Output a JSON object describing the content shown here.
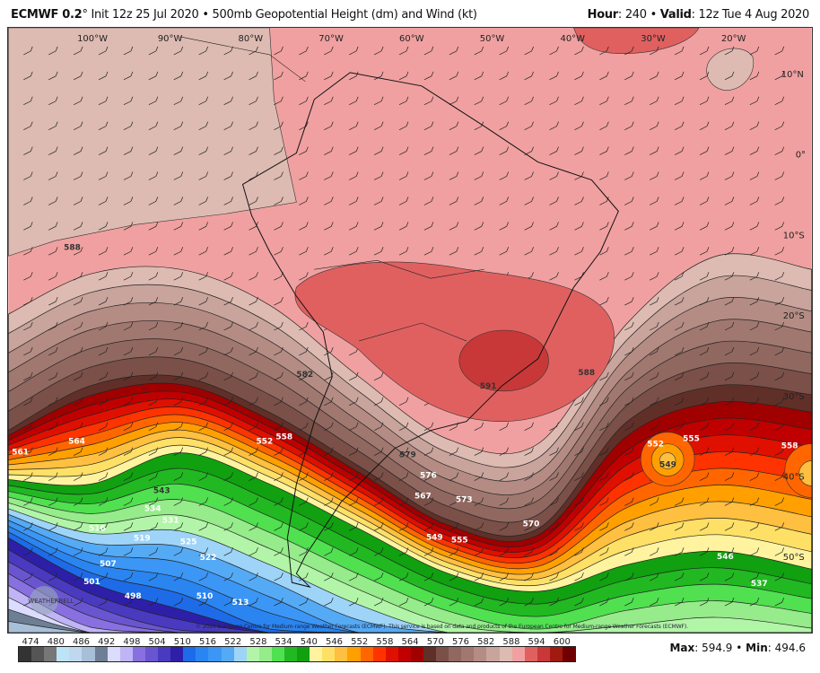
{
  "header": {
    "model": "ECMWF 0.2",
    "degree": "°",
    "init": "Init 12z 25 Jul 2020",
    "sep": "•",
    "field": "500mb Geopotential Height (dm) and Wind (kt)",
    "hour_label": "Hour",
    "hour": ": 240",
    "valid_label": "Valid",
    "valid": ": 12z Tue 4 Aug 2020"
  },
  "map": {
    "lon_labels": [
      "100°W",
      "90°W",
      "80°W",
      "70°W",
      "60°W",
      "50°W",
      "40°W",
      "30°W",
      "20°W"
    ],
    "lat_labels": [
      "10°N",
      "0°",
      "10°S",
      "20°S",
      "30°S",
      "40°S",
      "50°S"
    ],
    "contour_labels": [
      "588",
      "591",
      "582",
      "579",
      "576",
      "573",
      "570",
      "567",
      "564",
      "561",
      "558",
      "555",
      "552",
      "549",
      "546",
      "543",
      "537",
      "534",
      "531",
      "525",
      "522",
      "519",
      "516",
      "513",
      "510",
      "507",
      "501",
      "498",
      "588",
      "558",
      "552",
      "555",
      "549"
    ],
    "copyright": "© 2020 European Centre for Medium-range Weather Forecasts (ECMWF). This service is based on data and products of the European Centre for Medium-range Weather Forecasts (ECMWF).",
    "logo_text": "WEATHERBELL"
  },
  "colorbar": {
    "labels": [
      "474",
      "480",
      "486",
      "492",
      "498",
      "504",
      "510",
      "516",
      "522",
      "528",
      "534",
      "540",
      "546",
      "552",
      "558",
      "564",
      "570",
      "576",
      "582",
      "588",
      "594",
      "600"
    ],
    "colors": [
      "#333333",
      "#555555",
      "#777777",
      "#bde3f7",
      "#c0d8ee",
      "#a8bfd8",
      "#6e7f95",
      "#dcdcff",
      "#bfb4f5",
      "#8870e0",
      "#6a55d0",
      "#4a3ac0",
      "#2e1fa8",
      "#1e6be8",
      "#2a85f0",
      "#3c96f5",
      "#55aaf5",
      "#9ed4f8",
      "#b2f5a8",
      "#96eb8a",
      "#50e050",
      "#22b822",
      "#10a010",
      "#fff3a0",
      "#ffe066",
      "#ffbf40",
      "#ffa000",
      "#ff6600",
      "#ff3300",
      "#e01000",
      "#c00000",
      "#a00000",
      "#603028",
      "#7a5048",
      "#906860",
      "#a07870",
      "#b48c84",
      "#c8a49c",
      "#ddbbb2",
      "#f0a0a0",
      "#e06060",
      "#c83838",
      "#a01a10",
      "#700000"
    ]
  },
  "stats": {
    "max_label": "Max",
    "max": ": 594.9",
    "sep": "•",
    "min_label": "Min",
    "min": ": 494.6"
  }
}
